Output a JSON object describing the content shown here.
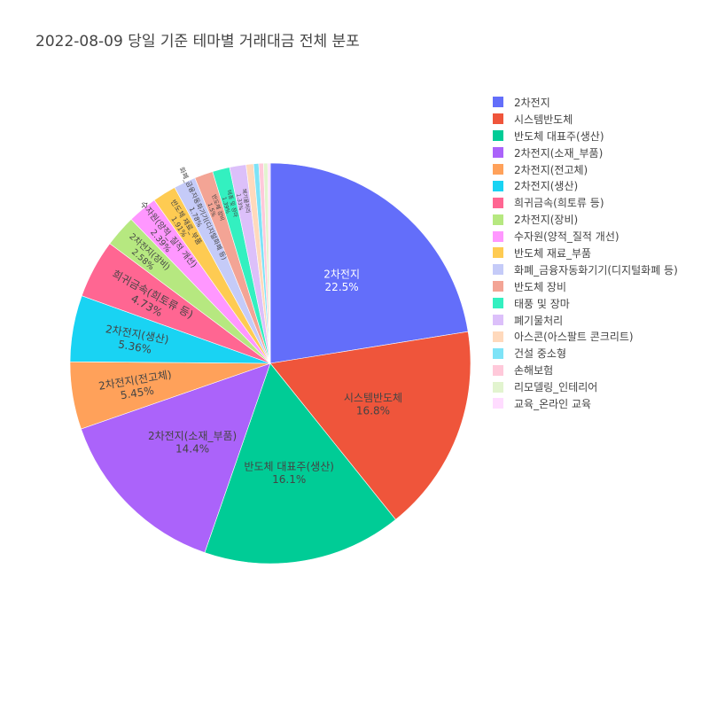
{
  "chart_data": {
    "type": "pie",
    "title": "2022-08-09 당일 기준 테마별 거래대금 전체 분포",
    "slices": [
      {
        "label": "2차전지",
        "value": 22.5,
        "text": "22.5%",
        "color": "#636efa"
      },
      {
        "label": "시스템반도체",
        "value": 16.8,
        "text": "16.8%",
        "color": "#ef553b"
      },
      {
        "label": "반도체 대표주(생산)",
        "value": 16.1,
        "text": "16.1%",
        "color": "#00cc96"
      },
      {
        "label": "2차전지(소재_부품)",
        "value": 14.4,
        "text": "14.4%",
        "color": "#ab63fa"
      },
      {
        "label": "2차전지(전고체)",
        "value": 5.45,
        "text": "5.45%",
        "color": "#ffa15a"
      },
      {
        "label": "2차전지(생산)",
        "value": 5.36,
        "text": "5.36%",
        "color": "#19d3f3"
      },
      {
        "label": "희귀금속(희토류 등)",
        "value": 4.73,
        "text": "4.73%",
        "color": "#ff6692"
      },
      {
        "label": "2차전지(장비)",
        "value": 2.58,
        "text": "2.58%",
        "color": "#b6e880"
      },
      {
        "label": "수자원(양적_질적 개선)",
        "value": 2.39,
        "text": "2.39%",
        "color": "#ff97ff"
      },
      {
        "label": "반도체 재료_부품",
        "value": 1.91,
        "text": "1.91%",
        "color": "#fecb52"
      },
      {
        "label": "화폐_금융자동화기기(디지털화폐 등)",
        "value": 1.78,
        "text": "1.78%",
        "color": "#c5cbf8"
      },
      {
        "label": "반도체 장비",
        "value": 1.5,
        "text": "1.5%",
        "color": "#f3a495"
      },
      {
        "label": "태풍 및 장마",
        "value": 1.39,
        "text": "1.39%",
        "color": "#33f0c0"
      },
      {
        "label": "폐기물처리",
        "value": 1.33,
        "text": "1.33%",
        "color": "#dcc0fa"
      },
      {
        "label": "아스콘(아스팔트 콘크리트)",
        "value": 0.6,
        "text": "",
        "color": "#ffd9bc"
      },
      {
        "label": "건설 중소형",
        "value": 0.42,
        "text": "",
        "color": "#7ee3f7"
      },
      {
        "label": "손해보험",
        "value": 0.38,
        "text": "",
        "color": "#ffc9da"
      },
      {
        "label": "리모델링_인테리어",
        "value": 0.34,
        "text": "",
        "color": "#e2f4cf"
      },
      {
        "label": "교육_온라인 교육",
        "value": 0.2,
        "text": "",
        "color": "#ffdcff"
      }
    ],
    "sort": "descending",
    "direction": "clockwise",
    "start": "12 o'clock",
    "legend_position": "right"
  }
}
